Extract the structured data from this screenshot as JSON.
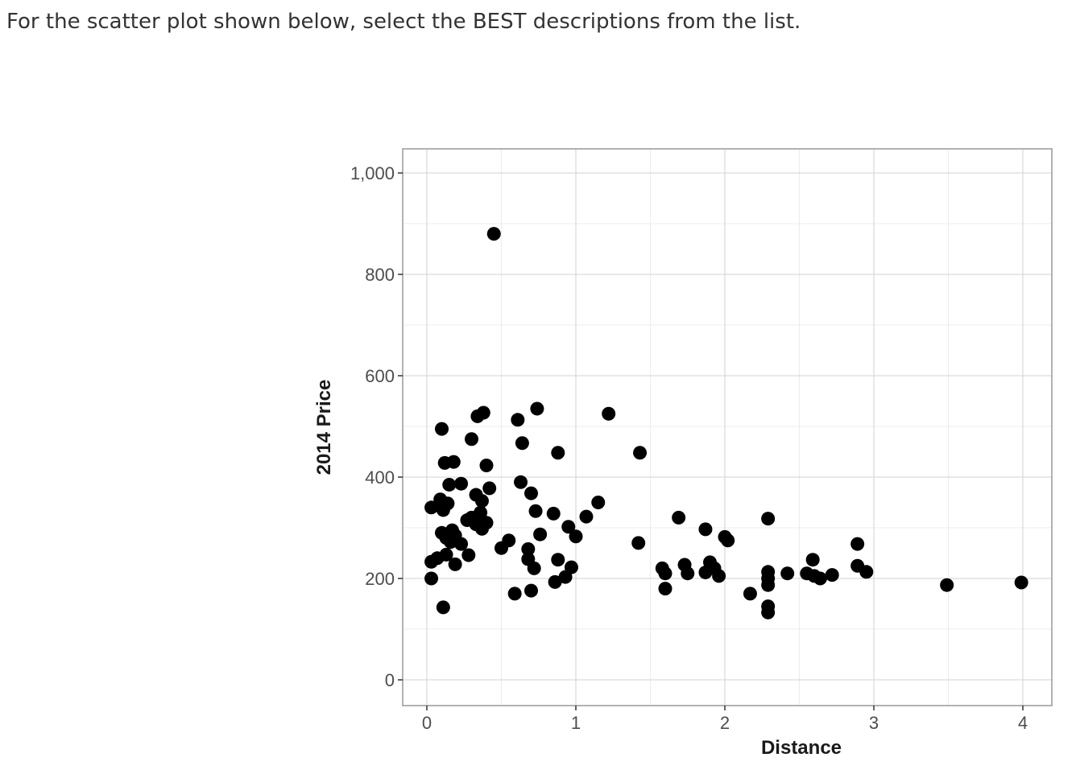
{
  "question": {
    "text": "For the scatter plot shown below, select the BEST descriptions from the list."
  },
  "chart_data": {
    "type": "scatter",
    "title": "",
    "xlabel": "Distance",
    "ylabel": "2014 Price",
    "xlim": [
      -0.15,
      4.2
    ],
    "ylim": [
      -50,
      1050
    ],
    "x_ticks": [
      0,
      1,
      2,
      3,
      4
    ],
    "x_tick_labels": [
      "0",
      "1",
      "2",
      "3",
      "4"
    ],
    "y_ticks": [
      0,
      200,
      400,
      600,
      800,
      1000
    ],
    "y_tick_labels": [
      "0",
      "200",
      "400",
      "600",
      "800",
      "1,000"
    ],
    "grid": true,
    "point_color": "#000000",
    "points": [
      [
        0.45,
        880
      ],
      [
        0.1,
        495
      ],
      [
        0.34,
        520
      ],
      [
        0.38,
        527
      ],
      [
        0.61,
        513
      ],
      [
        0.74,
        535
      ],
      [
        0.3,
        475
      ],
      [
        0.64,
        467
      ],
      [
        0.88,
        448
      ],
      [
        1.22,
        525
      ],
      [
        1.43,
        448
      ],
      [
        0.12,
        428
      ],
      [
        0.18,
        430
      ],
      [
        0.4,
        423
      ],
      [
        0.15,
        385
      ],
      [
        0.23,
        387
      ],
      [
        0.63,
        390
      ],
      [
        0.42,
        378
      ],
      [
        0.7,
        368
      ],
      [
        0.33,
        365
      ],
      [
        0.37,
        353
      ],
      [
        0.09,
        356
      ],
      [
        0.14,
        348
      ],
      [
        0.03,
        340
      ],
      [
        0.11,
        335
      ],
      [
        0.73,
        333
      ],
      [
        0.85,
        328
      ],
      [
        0.36,
        330
      ],
      [
        0.3,
        320
      ],
      [
        1.07,
        322
      ],
      [
        1.15,
        350
      ],
      [
        0.27,
        315
      ],
      [
        0.33,
        307
      ],
      [
        0.4,
        310
      ],
      [
        0.37,
        298
      ],
      [
        0.95,
        302
      ],
      [
        1.0,
        283
      ],
      [
        0.76,
        287
      ],
      [
        0.1,
        290
      ],
      [
        0.17,
        295
      ],
      [
        0.13,
        280
      ],
      [
        0.19,
        285
      ],
      [
        0.16,
        272
      ],
      [
        0.23,
        268
      ],
      [
        0.55,
        275
      ],
      [
        0.5,
        260
      ],
      [
        0.68,
        258
      ],
      [
        0.28,
        246
      ],
      [
        0.13,
        247
      ],
      [
        0.07,
        240
      ],
      [
        0.03,
        233
      ],
      [
        0.19,
        228
      ],
      [
        0.68,
        238
      ],
      [
        0.72,
        220
      ],
      [
        0.88,
        237
      ],
      [
        0.97,
        222
      ],
      [
        0.93,
        203
      ],
      [
        0.86,
        193
      ],
      [
        0.03,
        200
      ],
      [
        0.11,
        143
      ],
      [
        0.59,
        170
      ],
      [
        0.7,
        176
      ],
      [
        1.42,
        270
      ],
      [
        1.69,
        320
      ],
      [
        1.58,
        220
      ],
      [
        1.6,
        210
      ],
      [
        1.6,
        180
      ],
      [
        1.73,
        227
      ],
      [
        1.75,
        210
      ],
      [
        1.87,
        297
      ],
      [
        1.87,
        212
      ],
      [
        1.9,
        232
      ],
      [
        1.93,
        220
      ],
      [
        1.96,
        205
      ],
      [
        2.0,
        282
      ],
      [
        2.02,
        275
      ],
      [
        2.17,
        170
      ],
      [
        2.29,
        318
      ],
      [
        2.29,
        213
      ],
      [
        2.29,
        200
      ],
      [
        2.29,
        187
      ],
      [
        2.29,
        145
      ],
      [
        2.29,
        133
      ],
      [
        2.42,
        210
      ],
      [
        2.55,
        210
      ],
      [
        2.59,
        237
      ],
      [
        2.6,
        205
      ],
      [
        2.64,
        200
      ],
      [
        2.72,
        207
      ],
      [
        2.89,
        268
      ],
      [
        2.89,
        225
      ],
      [
        2.95,
        213
      ],
      [
        3.49,
        187
      ],
      [
        3.99,
        192
      ]
    ]
  }
}
